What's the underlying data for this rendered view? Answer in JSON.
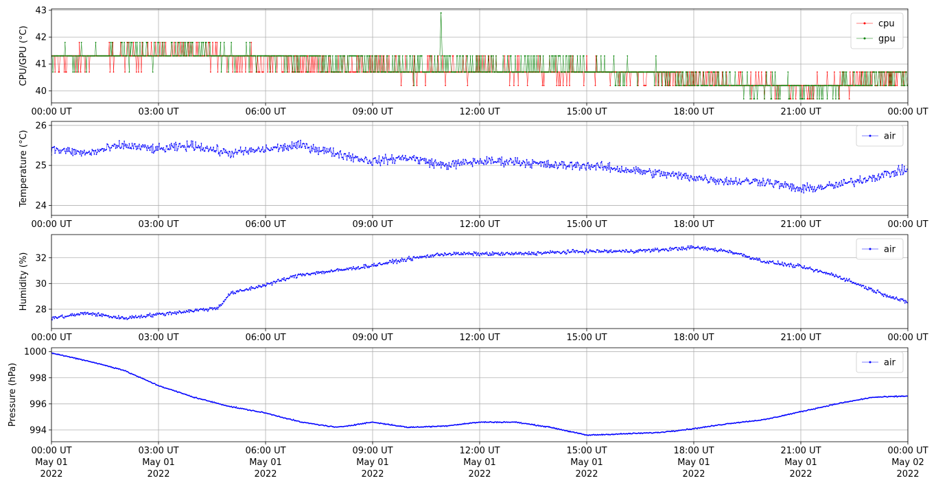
{
  "figure": {
    "background": "#ffffff",
    "grid_color": "#b0b0b0",
    "x_tick_labels": [
      "00:00 UT",
      "03:00 UT",
      "06:00 UT",
      "09:00 UT",
      "12:00 UT",
      "15:00 UT",
      "18:00 UT",
      "21:00 UT",
      "00:00 UT"
    ],
    "x_date_lines": [
      "May 01",
      "May 01",
      "May 01",
      "May 01",
      "May 01",
      "May 01",
      "May 01",
      "May 01",
      "May 02"
    ],
    "x_year_lines": [
      "2022",
      "2022",
      "2022",
      "2022",
      "2022",
      "2022",
      "2022",
      "2022",
      "2022"
    ]
  },
  "chart_data": [
    {
      "type": "line",
      "ylabel": "CPU/GPU (°C)",
      "xlim": [
        "2022-05-01 00:00",
        "2022-05-02 00:00"
      ],
      "ylim": [
        39.55,
        43.05
      ],
      "yticks": [
        40,
        41,
        42,
        43
      ],
      "grid": true,
      "legend": "top-right",
      "series": [
        {
          "name": "cpu",
          "color": "#ff0000",
          "x": [
            "2022-05-01 00:00",
            "2022-05-01 01:00",
            "2022-05-01 02:00",
            "2022-05-01 03:00",
            "2022-05-01 04:00",
            "2022-05-01 05:00",
            "2022-05-01 06:00",
            "2022-05-01 07:00",
            "2022-05-01 08:00",
            "2022-05-01 09:00",
            "2022-05-01 10:00",
            "2022-05-01 11:00",
            "2022-05-01 12:00",
            "2022-05-01 13:00",
            "2022-05-01 14:00",
            "2022-05-01 15:00",
            "2022-05-01 16:00",
            "2022-05-01 17:00",
            "2022-05-01 18:00",
            "2022-05-01 19:00",
            "2022-05-01 20:00",
            "2022-05-01 21:00",
            "2022-05-01 22:00",
            "2022-05-01 23:00",
            "2022-05-02 00:00"
          ],
          "y": [
            41.0,
            41.2,
            41.3,
            41.4,
            41.4,
            41.2,
            41.1,
            41.0,
            40.9,
            40.9,
            40.8,
            40.8,
            40.8,
            40.8,
            40.7,
            40.7,
            40.6,
            40.6,
            40.4,
            40.3,
            40.2,
            40.1,
            40.2,
            40.4,
            40.6
          ]
        },
        {
          "name": "gpu",
          "color": "#008000",
          "x": [
            "2022-05-01 00:00",
            "2022-05-01 01:00",
            "2022-05-01 02:00",
            "2022-05-01 03:00",
            "2022-05-01 04:00",
            "2022-05-01 05:00",
            "2022-05-01 06:00",
            "2022-05-01 07:00",
            "2022-05-01 08:00",
            "2022-05-01 09:00",
            "2022-05-01 10:00",
            "2022-05-01 11:00",
            "2022-05-01 12:00",
            "2022-05-01 13:00",
            "2022-05-01 14:00",
            "2022-05-01 15:00",
            "2022-05-01 16:00",
            "2022-05-01 17:00",
            "2022-05-01 18:00",
            "2022-05-01 19:00",
            "2022-05-01 20:00",
            "2022-05-01 21:00",
            "2022-05-01 22:00",
            "2022-05-01 23:00",
            "2022-05-02 00:00"
          ],
          "y": [
            41.2,
            41.3,
            41.4,
            41.4,
            41.5,
            41.3,
            41.2,
            41.1,
            41.0,
            41.0,
            40.9,
            40.9,
            40.9,
            40.9,
            40.9,
            40.8,
            40.7,
            40.6,
            40.4,
            40.3,
            40.2,
            40.1,
            40.2,
            40.4,
            40.6
          ]
        }
      ],
      "annotations": [
        {
          "x": "2022-05-01 10:55",
          "y": 42.9
        }
      ]
    },
    {
      "type": "line",
      "ylabel": "Temperature (°C)",
      "xlim": [
        "2022-05-01 00:00",
        "2022-05-02 00:00"
      ],
      "ylim": [
        23.75,
        26.1
      ],
      "yticks": [
        24,
        25,
        26
      ],
      "grid": true,
      "legend": "top-right",
      "series": [
        {
          "name": "air",
          "color": "#0000ff",
          "x": [
            "2022-05-01 00:00",
            "2022-05-01 01:00",
            "2022-05-01 02:00",
            "2022-05-01 03:00",
            "2022-05-01 04:00",
            "2022-05-01 05:00",
            "2022-05-01 06:00",
            "2022-05-01 07:00",
            "2022-05-01 08:00",
            "2022-05-01 09:00",
            "2022-05-01 10:00",
            "2022-05-01 11:00",
            "2022-05-01 12:00",
            "2022-05-01 13:00",
            "2022-05-01 14:00",
            "2022-05-01 15:00",
            "2022-05-01 16:00",
            "2022-05-01 17:00",
            "2022-05-01 18:00",
            "2022-05-01 19:00",
            "2022-05-01 20:00",
            "2022-05-01 21:00",
            "2022-05-01 22:00",
            "2022-05-01 23:00",
            "2022-05-02 00:00"
          ],
          "y": [
            25.4,
            25.3,
            25.5,
            25.4,
            25.5,
            25.3,
            25.4,
            25.5,
            25.3,
            25.1,
            25.2,
            25.0,
            25.1,
            25.1,
            25.0,
            25.0,
            24.9,
            24.8,
            24.7,
            24.6,
            24.6,
            24.4,
            24.5,
            24.7,
            24.9
          ]
        }
      ]
    },
    {
      "type": "line",
      "ylabel": "Humidity (%)",
      "xlim": [
        "2022-05-01 00:00",
        "2022-05-02 00:00"
      ],
      "ylim": [
        26.5,
        33.8
      ],
      "yticks": [
        28,
        30,
        32
      ],
      "grid": true,
      "legend": "top-right",
      "series": [
        {
          "name": "air",
          "color": "#0000ff",
          "x": [
            "2022-05-01 00:00",
            "2022-05-01 01:00",
            "2022-05-01 02:00",
            "2022-05-01 03:00",
            "2022-05-01 04:00",
            "2022-05-01 04:40",
            "2022-05-01 05:00",
            "2022-05-01 06:00",
            "2022-05-01 07:00",
            "2022-05-01 08:00",
            "2022-05-01 09:00",
            "2022-05-01 10:00",
            "2022-05-01 11:00",
            "2022-05-01 12:00",
            "2022-05-01 13:00",
            "2022-05-01 14:00",
            "2022-05-01 15:00",
            "2022-05-01 16:00",
            "2022-05-01 17:00",
            "2022-05-01 18:00",
            "2022-05-01 19:00",
            "2022-05-01 20:00",
            "2022-05-01 21:00",
            "2022-05-01 22:00",
            "2022-05-01 23:00",
            "2022-05-02 00:00"
          ],
          "y": [
            27.3,
            27.7,
            27.3,
            27.6,
            27.9,
            28.1,
            29.2,
            29.9,
            30.7,
            31.0,
            31.4,
            31.9,
            32.3,
            32.3,
            32.3,
            32.4,
            32.5,
            32.5,
            32.6,
            32.8,
            32.5,
            31.7,
            31.3,
            30.6,
            29.5,
            28.5
          ]
        }
      ]
    },
    {
      "type": "line",
      "ylabel": "Pressure (hPa)",
      "xlim": [
        "2022-05-01 00:00",
        "2022-05-02 00:00"
      ],
      "ylim": [
        993.1,
        1000.3
      ],
      "yticks": [
        994,
        996,
        998,
        1000
      ],
      "grid": true,
      "legend": "top-right",
      "series": [
        {
          "name": "air",
          "color": "#0000ff",
          "x": [
            "2022-05-01 00:00",
            "2022-05-01 01:00",
            "2022-05-01 02:00",
            "2022-05-01 03:00",
            "2022-05-01 04:00",
            "2022-05-01 05:00",
            "2022-05-01 06:00",
            "2022-05-01 07:00",
            "2022-05-01 08:00",
            "2022-05-01 09:00",
            "2022-05-01 10:00",
            "2022-05-01 11:00",
            "2022-05-01 12:00",
            "2022-05-01 13:00",
            "2022-05-01 14:00",
            "2022-05-01 15:00",
            "2022-05-01 16:00",
            "2022-05-01 17:00",
            "2022-05-01 18:00",
            "2022-05-01 19:00",
            "2022-05-01 20:00",
            "2022-05-01 21:00",
            "2022-05-01 22:00",
            "2022-05-01 23:00",
            "2022-05-02 00:00"
          ],
          "y": [
            999.9,
            999.3,
            998.6,
            997.4,
            996.5,
            995.8,
            995.3,
            994.6,
            994.2,
            994.6,
            994.2,
            994.3,
            994.6,
            994.6,
            994.2,
            993.6,
            993.7,
            993.8,
            994.1,
            994.5,
            994.8,
            995.4,
            996.0,
            996.5,
            996.6
          ]
        }
      ]
    }
  ]
}
